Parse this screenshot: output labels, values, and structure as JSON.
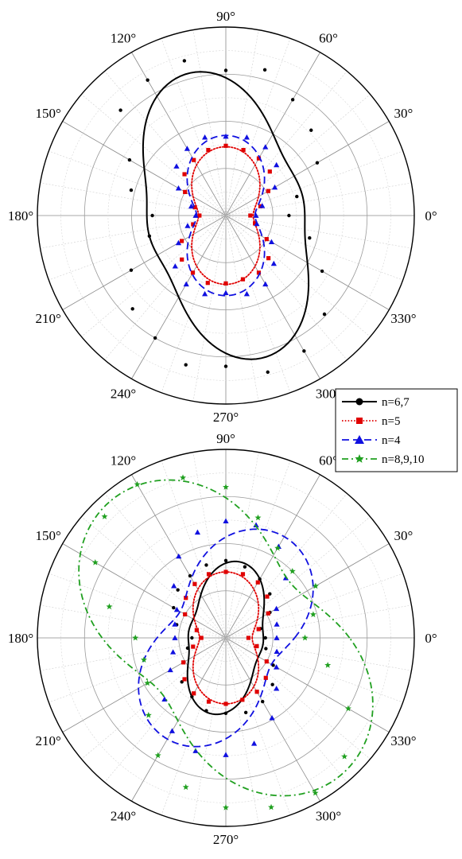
{
  "chart_data": [
    {
      "type": "polar-line",
      "title": "",
      "angle_unit": "degrees",
      "angle_ticks": [
        "0°",
        "30°",
        "60°",
        "90°",
        "120°",
        "150°",
        "180°",
        "210°",
        "240°",
        "270°",
        "300°",
        "330°"
      ],
      "radial_range": [
        0,
        1
      ],
      "grid": true,
      "legend": "",
      "series": [
        {
          "name": "n=6,7",
          "color": "#000000",
          "line": "solid",
          "marker": "dot",
          "fit": {
            "a": 0.55,
            "b": 0.18,
            "c": 0.05,
            "phase_deg": 15
          },
          "points": [
            [
              0,
              0.335
            ],
            [
              15,
              0.39
            ],
            [
              30,
              0.56
            ],
            [
              45,
              0.64
            ],
            [
              60,
              0.71
            ],
            [
              75,
              0.8
            ],
            [
              90,
              0.77
            ],
            [
              105,
              0.85
            ],
            [
              120,
              0.83
            ],
            [
              135,
              0.79
            ],
            [
              150,
              0.59
            ],
            [
              165,
              0.52
            ],
            [
              180,
              0.39
            ],
            [
              195,
              0.42
            ],
            [
              210,
              0.58
            ],
            [
              225,
              0.7
            ],
            [
              240,
              0.75
            ],
            [
              255,
              0.82
            ],
            [
              270,
              0.8
            ],
            [
              285,
              0.86
            ],
            [
              300,
              0.83
            ],
            [
              315,
              0.74
            ],
            [
              330,
              0.59
            ],
            [
              345,
              0.46
            ]
          ]
        },
        {
          "name": "n=5",
          "color": "#e00000",
          "line": "dotted",
          "marker": "square",
          "fit": {
            "a": 0.255,
            "b": 0.11,
            "c": 0.0,
            "phase_deg": 0
          },
          "points": [
            [
              0,
              0.13
            ],
            [
              15,
              0.19
            ],
            [
              30,
              0.26
            ],
            [
              45,
              0.33
            ],
            [
              60,
              0.35
            ],
            [
              75,
              0.36
            ],
            [
              90,
              0.37
            ],
            [
              105,
              0.36
            ],
            [
              120,
              0.34
            ],
            [
              135,
              0.31
            ],
            [
              150,
              0.25
            ],
            [
              165,
              0.17
            ],
            [
              180,
              0.14
            ],
            [
              195,
              0.18
            ],
            [
              210,
              0.27
            ],
            [
              225,
              0.33
            ],
            [
              240,
              0.35
            ],
            [
              255,
              0.37
            ],
            [
              270,
              0.36
            ],
            [
              285,
              0.35
            ],
            [
              300,
              0.35
            ],
            [
              315,
              0.32
            ],
            [
              330,
              0.25
            ],
            [
              345,
              0.16
            ]
          ]
        },
        {
          "name": "n=4",
          "color": "#1010e0",
          "line": "dashed",
          "marker": "triangle",
          "fit": {
            "a": 0.29,
            "b": 0.135,
            "c": 0.0,
            "phase_deg": 0
          },
          "points": [
            [
              0,
              0.16
            ],
            [
              15,
              0.2
            ],
            [
              30,
              0.3
            ],
            [
              45,
              0.38
            ],
            [
              60,
              0.42
            ],
            [
              75,
              0.43
            ],
            [
              90,
              0.42
            ],
            [
              105,
              0.43
            ],
            [
              120,
              0.41
            ],
            [
              135,
              0.37
            ],
            [
              150,
              0.29
            ],
            [
              165,
              0.19
            ],
            [
              180,
              0.16
            ],
            [
              195,
              0.21
            ],
            [
              210,
              0.29
            ],
            [
              225,
              0.38
            ],
            [
              240,
              0.42
            ],
            [
              255,
              0.43
            ],
            [
              270,
              0.41
            ],
            [
              285,
              0.43
            ],
            [
              300,
              0.42
            ],
            [
              315,
              0.36
            ],
            [
              330,
              0.28
            ],
            [
              345,
              0.17
            ]
          ]
        }
      ]
    },
    {
      "type": "polar-line",
      "title": "",
      "angle_unit": "degrees",
      "angle_ticks": [
        "0°",
        "30°",
        "60°",
        "90°",
        "120°",
        "150°",
        "180°",
        "210°",
        "240°",
        "270°",
        "300°",
        "330°"
      ],
      "radial_range": [
        0,
        1
      ],
      "grid": true,
      "legend": "top-right",
      "series": [
        {
          "name": "n=6,7",
          "color": "#000000",
          "line": "solid",
          "marker": "dot",
          "fit": {
            "a": 0.275,
            "b": 0.105,
            "c": 0.03,
            "phase_deg": -10
          },
          "points": [
            [
              0,
              0.21
            ],
            [
              15,
              0.19
            ],
            [
              30,
              0.27
            ],
            [
              45,
              0.33
            ],
            [
              60,
              0.36
            ],
            [
              75,
              0.39
            ],
            [
              90,
              0.41
            ],
            [
              105,
              0.4
            ],
            [
              120,
              0.38
            ],
            [
              135,
              0.36
            ],
            [
              150,
              0.32
            ],
            [
              165,
              0.27
            ],
            [
              180,
              0.18
            ],
            [
              195,
              0.21
            ],
            [
              210,
              0.26
            ],
            [
              225,
              0.33
            ],
            [
              240,
              0.36
            ],
            [
              255,
              0.4
            ],
            [
              270,
              0.4
            ],
            [
              285,
              0.41
            ],
            [
              300,
              0.39
            ],
            [
              315,
              0.35
            ],
            [
              330,
              0.29
            ],
            [
              345,
              0.22
            ]
          ]
        },
        {
          "name": "n=5",
          "color": "#e00000",
          "line": "dotted",
          "marker": "square",
          "fit": {
            "a": 0.245,
            "b": 0.105,
            "c": 0.0,
            "phase_deg": 0
          },
          "points": [
            [
              0,
              0.12
            ],
            [
              15,
              0.18
            ],
            [
              30,
              0.26
            ],
            [
              45,
              0.31
            ],
            [
              60,
              0.34
            ],
            [
              75,
              0.35
            ],
            [
              90,
              0.35
            ],
            [
              105,
              0.35
            ],
            [
              120,
              0.33
            ],
            [
              135,
              0.3
            ],
            [
              150,
              0.25
            ],
            [
              165,
              0.16
            ],
            [
              180,
              0.13
            ],
            [
              195,
              0.18
            ],
            [
              210,
              0.26
            ],
            [
              225,
              0.31
            ],
            [
              240,
              0.34
            ],
            [
              255,
              0.35
            ],
            [
              270,
              0.35
            ],
            [
              285,
              0.34
            ],
            [
              300,
              0.33
            ],
            [
              315,
              0.3
            ],
            [
              330,
              0.25
            ],
            [
              345,
              0.17
            ]
          ]
        },
        {
          "name": "n=4",
          "color": "#1010e0",
          "line": "dashed",
          "marker": "triangle",
          "fit": {
            "a": 0.45,
            "b": 0.17,
            "c": 0.0,
            "phase_deg": -30
          },
          "points": [
            [
              0,
              0.27
            ],
            [
              15,
              0.28
            ],
            [
              30,
              0.31
            ],
            [
              45,
              0.45
            ],
            [
              60,
              0.56
            ],
            [
              75,
              0.62
            ],
            [
              90,
              0.62
            ],
            [
              105,
              0.58
            ],
            [
              120,
              0.5
            ],
            [
              135,
              0.39
            ],
            [
              150,
              0.3
            ],
            [
              165,
              0.28
            ],
            [
              180,
              0.27
            ],
            [
              195,
              0.29
            ],
            [
              210,
              0.34
            ],
            [
              225,
              0.46
            ],
            [
              240,
              0.57
            ],
            [
              255,
              0.62
            ],
            [
              270,
              0.62
            ],
            [
              285,
              0.58
            ],
            [
              300,
              0.49
            ],
            [
              315,
              0.38
            ],
            [
              330,
              0.31
            ],
            [
              345,
              0.28
            ]
          ]
        },
        {
          "name": "n=8,9,10",
          "color": "#20a020",
          "line": "dashdot",
          "marker": "star",
          "fit": {
            "a": 0.7,
            "b": 0.25,
            "c": 0.0,
            "phase_deg": 40
          },
          "points": [
            [
              0,
              0.42
            ],
            [
              15,
              0.48
            ],
            [
              30,
              0.55
            ],
            [
              45,
              0.5
            ],
            [
              60,
              0.55
            ],
            [
              75,
              0.66
            ],
            [
              90,
              0.8
            ],
            [
              105,
              0.88
            ],
            [
              120,
              0.94
            ],
            [
              135,
              0.91
            ],
            [
              150,
              0.8
            ],
            [
              165,
              0.64
            ],
            [
              180,
              0.48
            ],
            [
              195,
              0.45
            ],
            [
              210,
              0.48
            ],
            [
              225,
              0.58
            ],
            [
              240,
              0.72
            ],
            [
              255,
              0.82
            ],
            [
              270,
              0.9
            ],
            [
              285,
              0.93
            ],
            [
              300,
              0.95
            ],
            [
              315,
              0.89
            ],
            [
              330,
              0.75
            ],
            [
              345,
              0.56
            ]
          ]
        }
      ]
    }
  ]
}
